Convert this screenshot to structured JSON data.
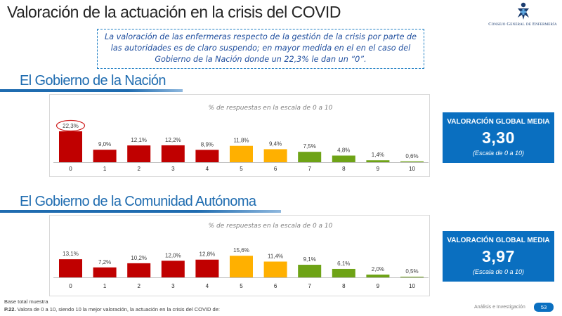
{
  "page": {
    "title": "Valoración de la actuación en la crisis del COVID",
    "logo_text": "Consejo General de Enfermería",
    "note": "La valoración de las enfermeras respecto de la gestión de la crisis por parte de las autoridades es de claro suspendo; en mayor medida en el en el caso del Gobierno de la Nación donde un 22,3% le dan un “0”.",
    "footnote_base": "Base total muestra",
    "footnote_question_id": "P.22.",
    "footnote_question": " Valora de 0 a 10, siendo 10 la mejor valoración, la actuación en la crisis del COVID de:",
    "footer_label": "Análisis e Investigación",
    "page_number": "53"
  },
  "colors": {
    "red": "#c00000",
    "orange": "#ffb000",
    "green": "#6ea316",
    "accent_blue": "#0a6fc0",
    "title_blue": "#1f6cb0"
  },
  "sections": [
    {
      "title": "El Gobierno de la Nación",
      "score_label": "VALORACIÓN GLOBAL MEDIA",
      "score_value": "3,30",
      "score_scale": "(Escala de 0 a 10)"
    },
    {
      "title": "El Gobierno de la Comunidad Autónoma",
      "score_label": "VALORACIÓN GLOBAL MEDIA",
      "score_value": "3,97",
      "score_scale": "(Escala de 0 a 10)"
    }
  ],
  "chart_data": [
    {
      "type": "bar",
      "title": "El Gobierno de la Nación",
      "subtitle": "% de respuestas en la escala de 0 a 10",
      "categories": [
        "0",
        "1",
        "2",
        "3",
        "4",
        "5",
        "6",
        "7",
        "8",
        "9",
        "10"
      ],
      "values": [
        22.3,
        9.0,
        12.1,
        12.2,
        8.9,
        11.8,
        9.4,
        7.5,
        4.8,
        1.4,
        0.6
      ],
      "value_labels": [
        "22,3%",
        "9,0%",
        "12,1%",
        "12,2%",
        "8,9%",
        "11,8%",
        "9,4%",
        "7,5%",
        "4,8%",
        "1,4%",
        "0,6%"
      ],
      "bar_colors": [
        "red",
        "red",
        "red",
        "red",
        "red",
        "orange",
        "orange",
        "green",
        "green",
        "green",
        "green"
      ],
      "highlight_index": 0,
      "ylim": [
        0,
        25
      ],
      "grid": false,
      "xlabel": "",
      "ylabel": ""
    },
    {
      "type": "bar",
      "title": "El Gobierno de la Comunidad Autónoma",
      "subtitle": "% de respuestas en la escala de 0 a 10",
      "categories": [
        "0",
        "1",
        "2",
        "3",
        "4",
        "5",
        "6",
        "7",
        "8",
        "9",
        "10"
      ],
      "values": [
        13.1,
        7.2,
        10.2,
        12.0,
        12.8,
        15.6,
        11.4,
        9.1,
        6.1,
        2.0,
        0.5
      ],
      "value_labels": [
        "13,1%",
        "7,2%",
        "10,2%",
        "12,0%",
        "12,8%",
        "15,6%",
        "11,4%",
        "9,1%",
        "6,1%",
        "2,0%",
        "0,5%"
      ],
      "bar_colors": [
        "red",
        "red",
        "red",
        "red",
        "red",
        "orange",
        "orange",
        "green",
        "green",
        "green",
        "green"
      ],
      "ylim": [
        0,
        25
      ],
      "grid": false,
      "xlabel": "",
      "ylabel": ""
    }
  ]
}
